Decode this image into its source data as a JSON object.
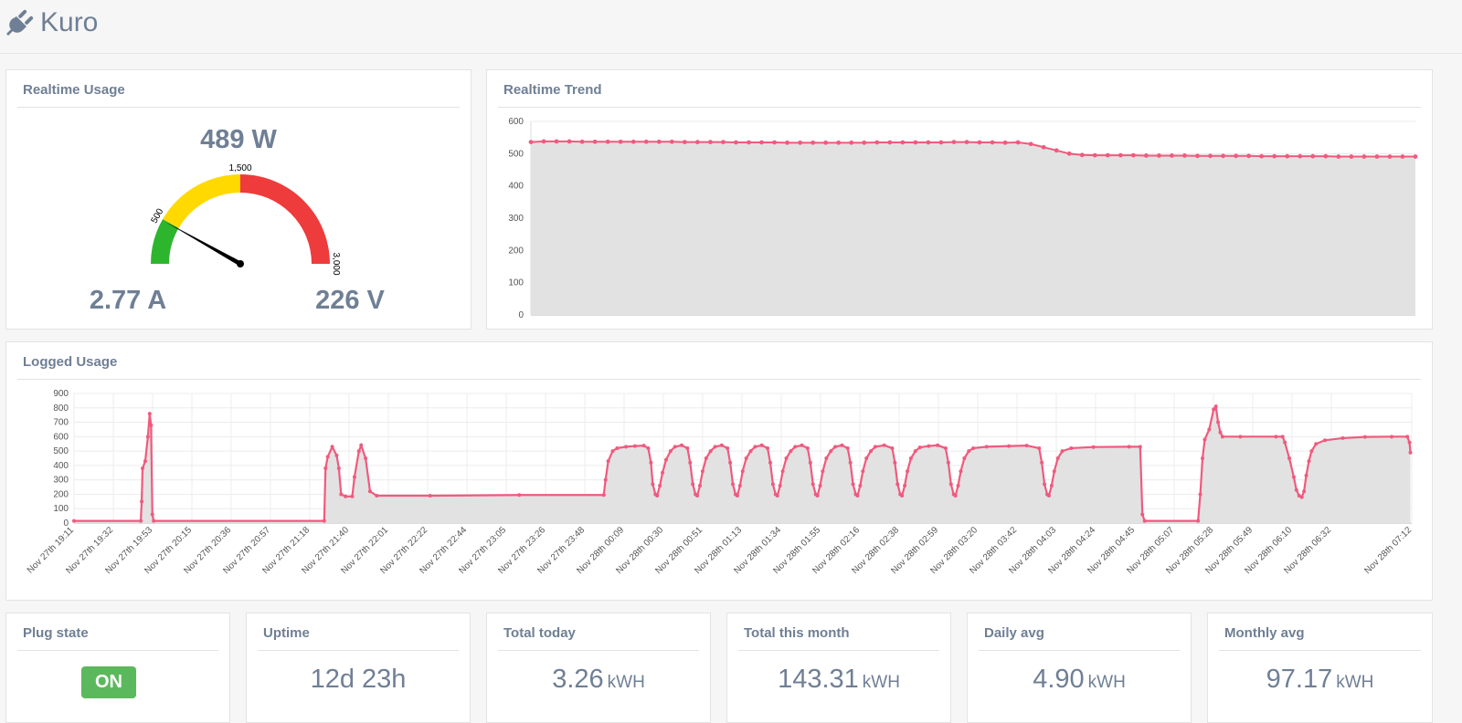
{
  "header": {
    "title": "Kuro",
    "icon": "plug-icon"
  },
  "realtime_usage": {
    "title": "Realtime Usage",
    "power": "489 W",
    "current": "2.77 A",
    "voltage": "226 V",
    "gauge": {
      "value": 489,
      "max": 3000,
      "bands": [
        {
          "from": 0,
          "to": 500,
          "color": "#2db52d"
        },
        {
          "from": 500,
          "to": 1500,
          "color": "#ffd900"
        },
        {
          "from": 1500,
          "to": 3000,
          "color": "#ee3b3b"
        }
      ],
      "tick_labels": [
        "500",
        "1,500",
        "3,000"
      ],
      "needle_color": "#000000"
    }
  },
  "realtime_trend": {
    "title": "Realtime Trend",
    "chart_data": {
      "type": "area",
      "ylim": [
        0,
        600
      ],
      "yticks": [
        "0",
        "100",
        "200",
        "300",
        "400",
        "500",
        "600"
      ],
      "grid": true,
      "line_color": "#f05a7e",
      "fill_color": "#e2e2e2",
      "values": [
        536,
        538,
        538,
        538,
        537,
        537,
        537,
        537,
        537,
        537,
        537,
        537,
        536,
        536,
        536,
        536,
        535,
        535,
        535,
        535,
        534,
        534,
        534,
        534,
        534,
        534,
        534,
        535,
        535,
        535,
        535,
        535,
        535,
        536,
        536,
        535,
        535,
        534,
        535,
        530,
        520,
        510,
        500,
        496,
        495,
        495,
        495,
        495,
        494,
        494,
        494,
        494,
        493,
        493,
        493,
        493,
        493,
        492,
        492,
        492,
        492,
        492,
        492,
        491,
        491,
        491,
        491,
        491,
        491,
        491
      ]
    }
  },
  "logged_usage": {
    "title": "Logged Usage",
    "chart_data": {
      "type": "area",
      "ylim": [
        0,
        900
      ],
      "yticks": [
        "0",
        "100",
        "200",
        "300",
        "400",
        "500",
        "600",
        "700",
        "800",
        "900"
      ],
      "grid": true,
      "line_color": "#f05a7e",
      "fill_color": "#e2e2e2",
      "x_labels": [
        "Nov 27th 19:11",
        "Nov 27th 19:32",
        "Nov 27th 19:53",
        "Nov 27th 20:15",
        "Nov 27th 20:36",
        "Nov 27th 20:57",
        "Nov 27th 21:18",
        "Nov 27th 21:40",
        "Nov 27th 22:01",
        "Nov 27th 22:22",
        "Nov 27th 22:44",
        "Nov 27th 23:05",
        "Nov 27th 23:26",
        "Nov 27th 23:48",
        "Nov 28th 00:09",
        "Nov 28th 00:30",
        "Nov 28th 00:51",
        "Nov 28th 01:13",
        "Nov 28th 01:34",
        "Nov 28th 01:55",
        "Nov 28th 02:16",
        "Nov 28th 02:38",
        "Nov 28th 02:59",
        "Nov 28th 03:20",
        "Nov 28th 03:42",
        "Nov 28th 04:03",
        "Nov 28th 04:24",
        "Nov 28th 04:45",
        "Nov 28th 05:07",
        "Nov 28th 05:28",
        "Nov 28th 05:49",
        "Nov 28th 06:10",
        "Nov 28th 06:32",
        "Nov 28th 07:12"
      ],
      "series_points": [
        [
          0,
          15
        ],
        [
          15,
          15
        ],
        [
          15.2,
          150
        ],
        [
          15.4,
          380
        ],
        [
          16,
          430
        ],
        [
          16.6,
          600
        ],
        [
          17,
          760
        ],
        [
          17.3,
          680
        ],
        [
          17.6,
          60
        ],
        [
          17.9,
          15
        ],
        [
          56.2,
          15
        ],
        [
          56.5,
          380
        ],
        [
          57,
          460
        ],
        [
          58,
          530
        ],
        [
          59,
          470
        ],
        [
          59.5,
          380
        ],
        [
          60,
          200
        ],
        [
          61,
          185
        ],
        [
          62.5,
          185
        ],
        [
          63,
          320
        ],
        [
          64,
          500
        ],
        [
          64.5,
          540
        ],
        [
          65.5,
          450
        ],
        [
          66.5,
          220
        ],
        [
          68,
          190
        ],
        [
          80,
          190
        ],
        [
          100,
          195
        ],
        [
          119,
          195
        ],
        [
          119.4,
          300
        ],
        [
          120,
          430
        ],
        [
          121,
          500
        ],
        [
          122,
          520
        ],
        [
          124,
          530
        ],
        [
          126,
          535
        ],
        [
          128,
          538
        ],
        [
          129,
          520
        ],
        [
          129.6,
          420
        ],
        [
          130,
          270
        ],
        [
          130.6,
          200
        ],
        [
          131,
          190
        ],
        [
          131.6,
          260
        ],
        [
          132.2,
          350
        ],
        [
          133,
          440
        ],
        [
          134,
          500
        ],
        [
          135,
          530
        ],
        [
          136.5,
          540
        ],
        [
          137.8,
          520
        ],
        [
          138.4,
          420
        ],
        [
          139,
          270
        ],
        [
          139.6,
          200
        ],
        [
          140,
          190
        ],
        [
          140.6,
          260
        ],
        [
          141.2,
          360
        ],
        [
          142,
          450
        ],
        [
          143,
          500
        ],
        [
          144,
          530
        ],
        [
          145.5,
          540
        ],
        [
          146.8,
          520
        ],
        [
          147.4,
          420
        ],
        [
          148,
          270
        ],
        [
          148.6,
          200
        ],
        [
          149,
          190
        ],
        [
          149.6,
          260
        ],
        [
          150.2,
          360
        ],
        [
          151,
          450
        ],
        [
          152,
          500
        ],
        [
          153,
          530
        ],
        [
          154.5,
          540
        ],
        [
          155.8,
          520
        ],
        [
          156.4,
          420
        ],
        [
          157,
          270
        ],
        [
          157.6,
          200
        ],
        [
          158,
          190
        ],
        [
          158.6,
          260
        ],
        [
          159.2,
          360
        ],
        [
          160,
          450
        ],
        [
          161,
          500
        ],
        [
          162,
          530
        ],
        [
          163.5,
          540
        ],
        [
          164.8,
          520
        ],
        [
          165.4,
          420
        ],
        [
          166,
          270
        ],
        [
          166.6,
          200
        ],
        [
          167,
          190
        ],
        [
          167.6,
          260
        ],
        [
          168.2,
          360
        ],
        [
          169,
          450
        ],
        [
          170,
          500
        ],
        [
          171,
          530
        ],
        [
          172.5,
          540
        ],
        [
          173.8,
          520
        ],
        [
          174.4,
          420
        ],
        [
          175,
          270
        ],
        [
          175.6,
          200
        ],
        [
          176,
          190
        ],
        [
          176.6,
          260
        ],
        [
          177.2,
          360
        ],
        [
          178,
          450
        ],
        [
          179,
          500
        ],
        [
          180,
          530
        ],
        [
          182,
          540
        ],
        [
          183.8,
          520
        ],
        [
          184.4,
          420
        ],
        [
          185,
          270
        ],
        [
          185.6,
          200
        ],
        [
          186,
          190
        ],
        [
          186.6,
          260
        ],
        [
          187.2,
          360
        ],
        [
          188,
          450
        ],
        [
          189,
          500
        ],
        [
          190,
          525
        ],
        [
          192,
          535
        ],
        [
          194,
          540
        ],
        [
          195.8,
          520
        ],
        [
          196.4,
          420
        ],
        [
          197,
          270
        ],
        [
          197.6,
          200
        ],
        [
          198,
          190
        ],
        [
          198.6,
          260
        ],
        [
          199.2,
          360
        ],
        [
          200,
          450
        ],
        [
          201,
          500
        ],
        [
          202,
          520
        ],
        [
          205,
          530
        ],
        [
          210,
          535
        ],
        [
          214,
          538
        ],
        [
          216.8,
          520
        ],
        [
          217.4,
          420
        ],
        [
          218,
          270
        ],
        [
          218.6,
          200
        ],
        [
          219,
          190
        ],
        [
          219.6,
          260
        ],
        [
          220.2,
          360
        ],
        [
          221,
          450
        ],
        [
          222,
          500
        ],
        [
          224,
          520
        ],
        [
          229,
          528
        ],
        [
          237,
          530
        ],
        [
          239.5,
          530
        ],
        [
          240,
          60
        ],
        [
          240.5,
          15
        ],
        [
          252.5,
          15
        ],
        [
          253,
          200
        ],
        [
          253.5,
          450
        ],
        [
          254,
          580
        ],
        [
          255,
          650
        ],
        [
          256,
          790
        ],
        [
          256.5,
          810
        ],
        [
          257,
          700
        ],
        [
          257.5,
          630
        ],
        [
          258,
          600
        ],
        [
          262,
          600
        ],
        [
          270,
          600
        ],
        [
          271.5,
          600
        ],
        [
          272,
          560
        ],
        [
          273,
          450
        ],
        [
          274,
          320
        ],
        [
          274.6,
          230
        ],
        [
          275.2,
          190
        ],
        [
          275.8,
          180
        ],
        [
          276.3,
          220
        ],
        [
          276.8,
          330
        ],
        [
          277.4,
          430
        ],
        [
          278,
          500
        ],
        [
          279,
          550
        ],
        [
          281,
          575
        ],
        [
          285,
          590
        ],
        [
          290,
          598
        ],
        [
          296,
          600
        ],
        [
          299.5,
          600
        ],
        [
          300,
          560
        ],
        [
          300.2,
          490
        ]
      ],
      "x_max": 300.5
    }
  },
  "stats": [
    {
      "title": "Plug state",
      "badge": "ON"
    },
    {
      "title": "Uptime",
      "value": "12d 23h",
      "unit": ""
    },
    {
      "title": "Total today",
      "value": "3.26",
      "unit": "kWH"
    },
    {
      "title": "Total this month",
      "value": "143.31",
      "unit": "kWH"
    },
    {
      "title": "Daily avg",
      "value": "4.90",
      "unit": "kWH"
    },
    {
      "title": "Monthly avg",
      "value": "97.17",
      "unit": "kWH"
    }
  ]
}
